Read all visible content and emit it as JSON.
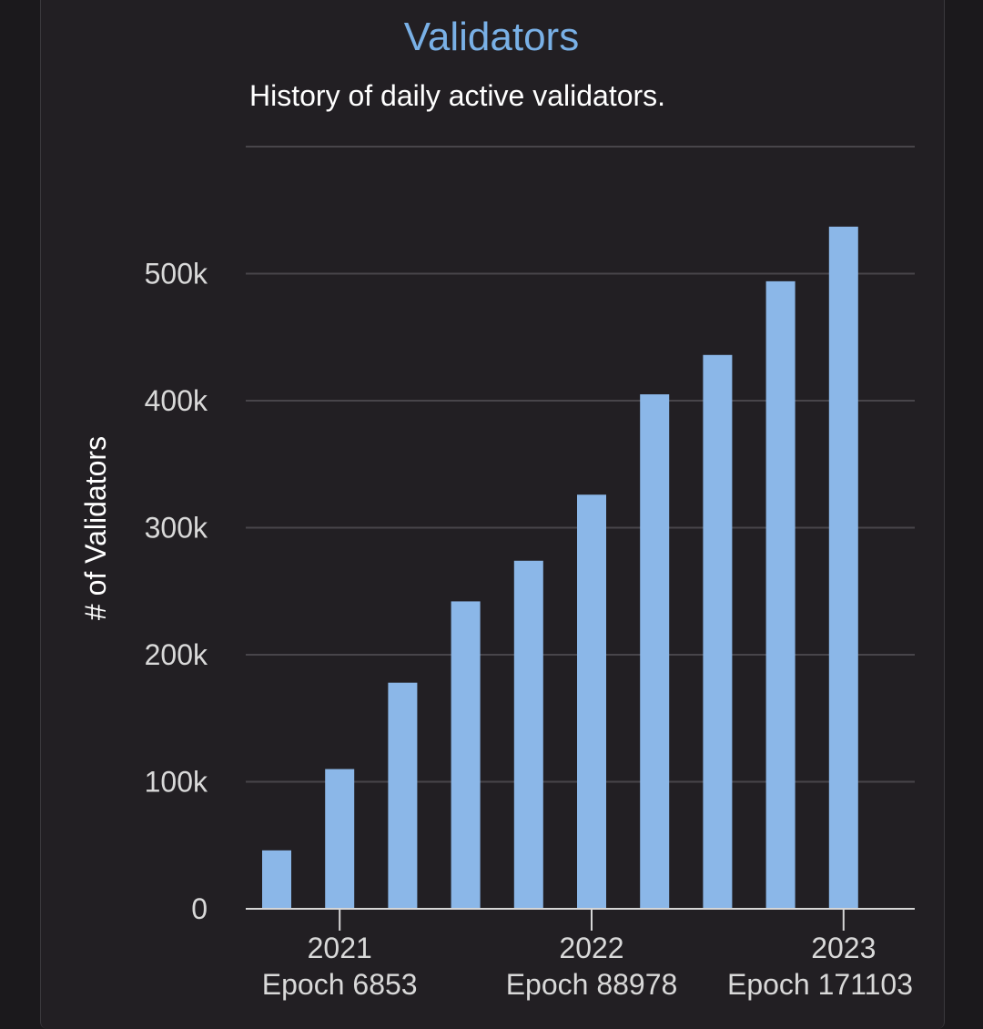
{
  "chart_data": {
    "type": "bar",
    "title": "Validators",
    "subtitle": "History of daily active validators.",
    "ylabel": "# of Validators",
    "xlabel": "",
    "ylim": [
      0,
      600000
    ],
    "yticks": [
      {
        "value": 0,
        "label": "0"
      },
      {
        "value": 100000,
        "label": "100k"
      },
      {
        "value": 200000,
        "label": "200k"
      },
      {
        "value": 300000,
        "label": "300k"
      },
      {
        "value": 400000,
        "label": "400k"
      },
      {
        "value": 500000,
        "label": "500k"
      }
    ],
    "grid": true,
    "values": [
      46000,
      110000,
      178000,
      242000,
      274000,
      326000,
      405000,
      436000,
      494000,
      537000
    ],
    "xticks": [
      {
        "bar_index": 1,
        "year": "2021",
        "epoch": "Epoch 6853"
      },
      {
        "bar_index": 5,
        "year": "2022",
        "epoch": "Epoch 88978"
      },
      {
        "bar_index": 9,
        "year": "2023",
        "epoch": "Epoch 171103"
      }
    ],
    "colors": {
      "bar": "#8bb7e8",
      "title": "#79b0e6"
    }
  }
}
